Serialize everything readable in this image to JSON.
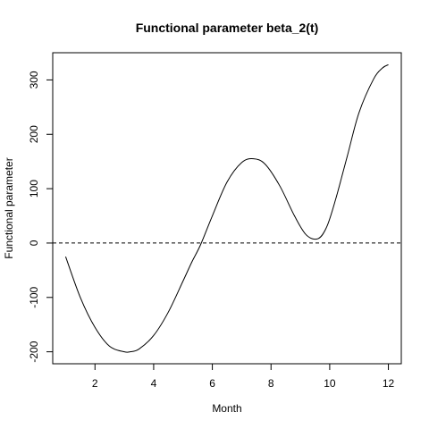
{
  "chart_data": {
    "type": "line",
    "title": "Functional parameter beta_2(t)",
    "xlabel": "Month",
    "ylabel": "Functional parameter",
    "xlim": [
      0.56,
      12.44
    ],
    "ylim": [
      -222,
      350
    ],
    "x_ticks": [
      2,
      4,
      6,
      8,
      10,
      12
    ],
    "y_ticks": [
      -200,
      -100,
      0,
      100,
      200,
      300
    ],
    "reference_line": {
      "y": 0,
      "style": "dashed"
    },
    "grid": false,
    "series": [
      {
        "x": [
          1.0,
          1.5,
          2.0,
          2.5,
          3.0,
          3.2,
          3.5,
          4.0,
          4.5,
          5.0,
          5.3,
          5.6,
          6.0,
          6.5,
          7.0,
          7.4,
          7.8,
          8.3,
          8.8,
          9.2,
          9.6,
          9.9,
          10.2,
          10.6,
          11.0,
          11.5,
          11.8,
          12.0
        ],
        "y": [
          -25,
          -100,
          -155,
          -190,
          -200,
          -200,
          -195,
          -170,
          -127,
          -70,
          -35,
          -3,
          50,
          112,
          148,
          155,
          145,
          105,
          50,
          15,
          8,
          30,
          80,
          160,
          240,
          302,
          322,
          328
        ]
      }
    ]
  }
}
